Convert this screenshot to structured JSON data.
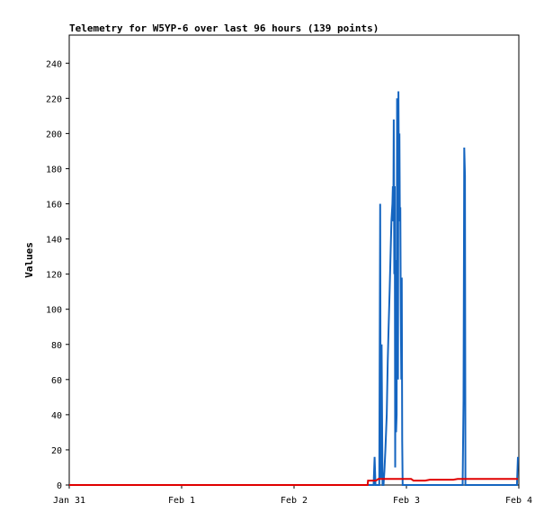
{
  "chart_data": {
    "type": "line",
    "title": "Telemetry for W5YP-6 over last 96 hours (139 points)",
    "xlabel": "",
    "ylabel": "Values",
    "x_ticks": [
      "Jan 31",
      "Feb 1",
      "Feb 2",
      "Feb 3",
      "Feb 4"
    ],
    "y_ticks": [
      0,
      20,
      40,
      60,
      80,
      100,
      120,
      140,
      160,
      180,
      200,
      220,
      240
    ],
    "xlim": [
      0,
      96
    ],
    "ylim": [
      0,
      256
    ],
    "grid": false,
    "series": [
      {
        "color": "#1565c0",
        "x": [
          0,
          65.0,
          65.2,
          65.4,
          66.2,
          66.4,
          66.5,
          66.7,
          66.9,
          67.1,
          67.3,
          67.5,
          67.8,
          68.0,
          68.2,
          68.4,
          68.6,
          68.8,
          69.0,
          69.1,
          69.2,
          69.3,
          69.4,
          69.5,
          69.6,
          69.7,
          69.8,
          69.9,
          70.0,
          70.1,
          70.2,
          70.3,
          70.4,
          70.5,
          70.6,
          70.7,
          70.8,
          70.9,
          71.0,
          71.1,
          71.2,
          71.3,
          71.4,
          71.5,
          71.6,
          71.7,
          71.8,
          71.9,
          72.0,
          72.1,
          72.2,
          72.3,
          72.4,
          84.0,
          84.2,
          84.35,
          84.5,
          84.6,
          84.8,
          95.6,
          95.8
        ],
        "values": [
          0,
          0,
          16,
          0,
          0,
          160,
          4,
          80,
          0,
          0,
          8,
          20,
          40,
          70,
          90,
          110,
          130,
          150,
          160,
          170,
          150,
          208,
          120,
          170,
          10,
          128,
          30,
          40,
          220,
          190,
          60,
          224,
          170,
          200,
          150,
          158,
          100,
          60,
          118,
          25,
          0,
          0,
          0,
          0,
          0,
          0,
          0,
          0,
          0,
          0,
          0,
          0,
          0,
          0,
          48,
          192,
          176,
          0,
          0,
          0,
          16
        ]
      },
      {
        "color": "#e00000",
        "x": [
          0,
          63.7,
          63.8,
          65.5,
          66.0,
          67.0,
          70.0,
          73.0,
          73.5,
          76.0,
          77.0,
          82.0,
          83.0,
          92.0,
          95.8
        ],
        "values": [
          0,
          0,
          2.5,
          2.5,
          3.5,
          3.5,
          3.5,
          3.5,
          2.5,
          2.5,
          3,
          3,
          3.5,
          3.5,
          3.5
        ]
      }
    ]
  }
}
